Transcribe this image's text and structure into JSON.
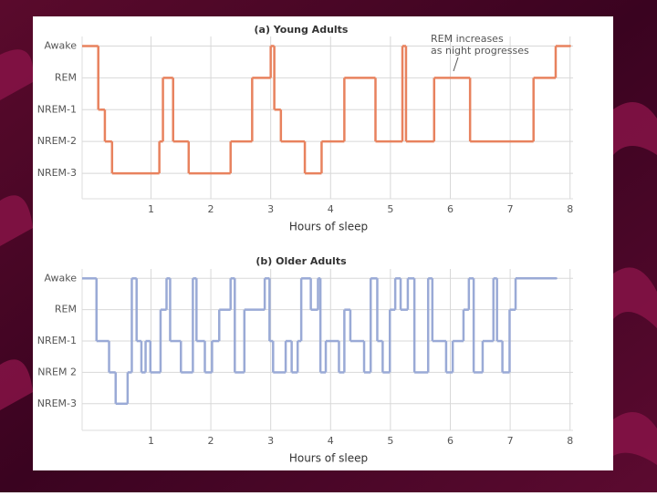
{
  "chart_data": [
    {
      "type": "line",
      "title": "(a) Young Adults",
      "xlabel": "Hours of sleep",
      "color": "#e8825e",
      "annotation": [
        "REM  increases",
        "as night progresses"
      ],
      "x": [
        -0.15,
        0.12,
        0.15,
        0.23,
        0.35,
        1.14,
        1.2,
        1.37,
        1.63,
        2.33,
        2.69,
        3.0,
        3.06,
        3.17,
        3.57,
        3.85,
        4.23,
        4.75,
        5.2,
        5.26,
        5.73,
        6.33,
        7.39,
        7.76,
        8.0
      ],
      "values": [
        4,
        2,
        2,
        1,
        0,
        1,
        3,
        1,
        0,
        1,
        3,
        4,
        2,
        1,
        0,
        1,
        3,
        1,
        4,
        1,
        3,
        1,
        3,
        4,
        4
      ],
      "xlim": [
        -0.15,
        8.05
      ],
      "xticks": [
        1,
        2,
        3,
        4,
        5,
        6,
        7,
        8
      ],
      "ylim": [
        -0.8,
        4.3
      ],
      "yticks": [
        {
          "value": 4,
          "label": "Awake"
        },
        {
          "value": 3,
          "label": "REM"
        },
        {
          "value": 2,
          "label": "NREM-1"
        },
        {
          "value": 1,
          "label": "NREM-2"
        },
        {
          "value": 0,
          "label": "NREM-3"
        }
      ],
      "grid": true
    },
    {
      "type": "line",
      "title": "(b) Older Adults",
      "xlabel": "Hours of sleep",
      "color": "#9aaad6",
      "x": [
        -0.15,
        0.09,
        0.3,
        0.41,
        0.61,
        0.68,
        0.76,
        0.84,
        0.91,
        0.99,
        1.16,
        1.26,
        1.32,
        1.5,
        1.7,
        1.76,
        1.9,
        2.02,
        2.14,
        2.33,
        2.4,
        2.56,
        2.9,
        2.98,
        3.04,
        3.25,
        3.35,
        3.45,
        3.51,
        3.67,
        3.79,
        3.83,
        3.92,
        4.14,
        4.23,
        4.33,
        4.56,
        4.67,
        4.78,
        4.87,
        4.99,
        5.08,
        5.17,
        5.29,
        5.4,
        5.63,
        5.7,
        5.93,
        6.04,
        6.22,
        6.31,
        6.39,
        6.54,
        6.72,
        6.78,
        6.87,
        6.99,
        7.09,
        7.77
      ],
      "values": [
        4,
        2,
        1,
        0,
        1,
        4,
        2,
        1,
        2,
        1,
        3,
        4,
        2,
        1,
        4,
        2,
        1,
        2,
        3,
        4,
        1,
        3,
        4,
        2,
        1,
        2,
        1,
        2,
        4,
        3,
        4,
        1,
        2,
        1,
        3,
        2,
        1,
        4,
        2,
        1,
        3,
        4,
        3,
        4,
        1,
        4,
        2,
        1,
        2,
        3,
        4,
        1,
        2,
        4,
        2,
        1,
        3,
        4,
        4
      ],
      "xlim": [
        -0.15,
        8.05
      ],
      "xticks": [
        1,
        2,
        3,
        4,
        5,
        6,
        7,
        8
      ],
      "ylim": [
        -0.85,
        4.3
      ],
      "yticks": [
        {
          "value": 4,
          "label": "Awake"
        },
        {
          "value": 3,
          "label": "REM"
        },
        {
          "value": 2,
          "label": "NREM-1"
        },
        {
          "value": 1,
          "label": "NREM 2"
        },
        {
          "value": 0,
          "label": "NREM-3"
        }
      ],
      "grid": true
    }
  ]
}
